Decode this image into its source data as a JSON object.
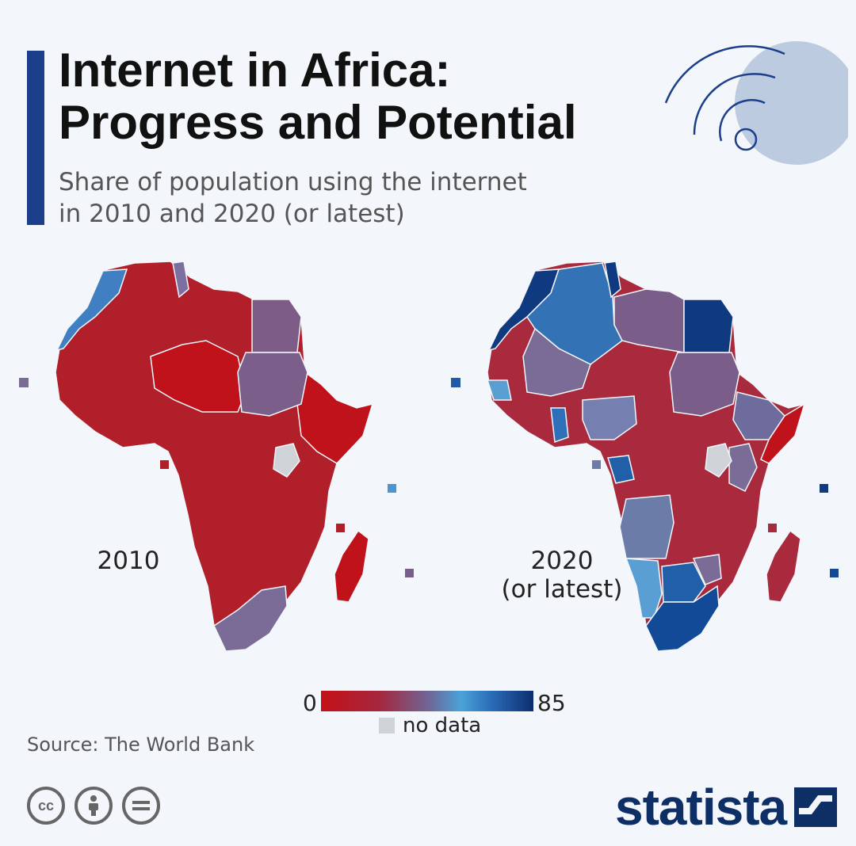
{
  "header": {
    "title_line1": "Internet in Africa:",
    "title_line2": "Progress and Potential",
    "subtitle_line1": "Share of population using the internet",
    "subtitle_line2": "in 2010 and 2020 (or latest)"
  },
  "maps": {
    "left_label": "2010",
    "right_label_line1": "2020",
    "right_label_line2": "(or latest)"
  },
  "legend": {
    "min": "0",
    "max": "85",
    "no_data_label": "no data",
    "colors": [
      "#c41016",
      "#a4283f",
      "#6c6a9c",
      "#4aa3d8",
      "#2b6db8",
      "#0d2e70"
    ],
    "no_data_color": "#cfd3d8"
  },
  "footer": {
    "source": "Source: The World Bank",
    "brand": "statista",
    "license_icons": [
      "cc-icon",
      "attribution-icon",
      "no-derivatives-icon"
    ]
  },
  "colors": {
    "accent": "#1b3f8a",
    "brand": "#0e2e66"
  }
}
